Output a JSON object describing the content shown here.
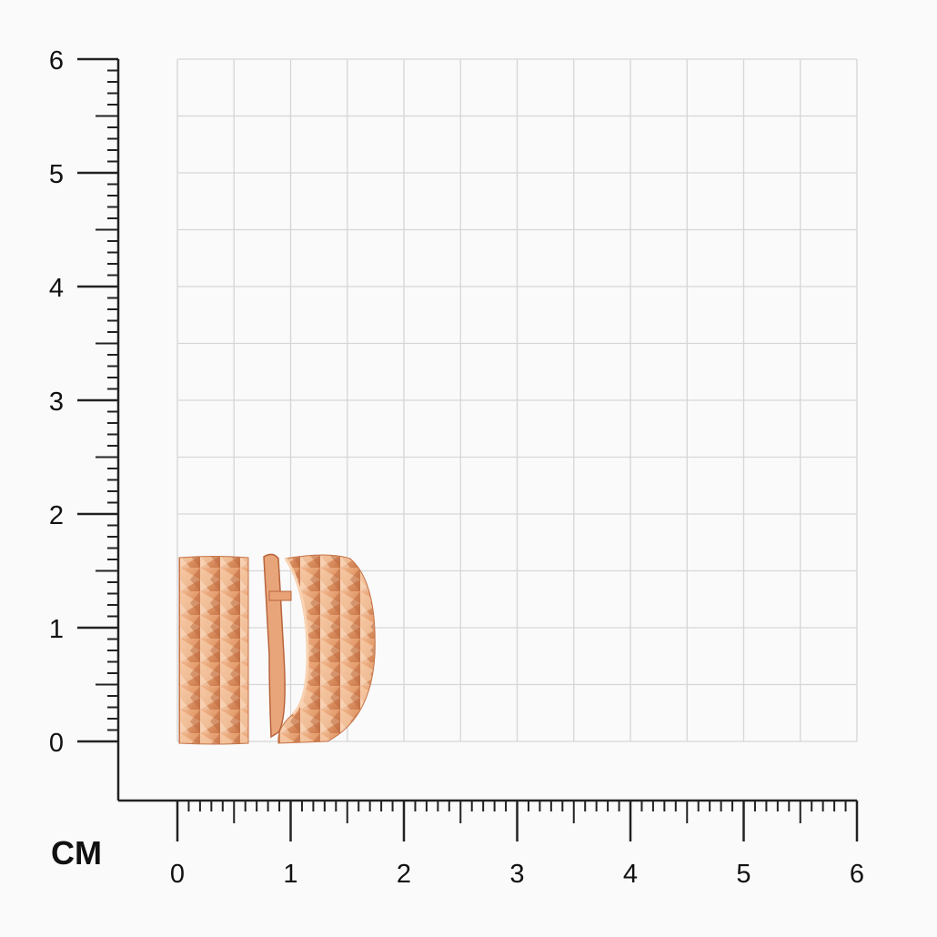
{
  "ruler": {
    "unit_label": "CM",
    "x_ticks": [
      "0",
      "1",
      "2",
      "3",
      "4",
      "5",
      "6"
    ],
    "y_ticks": [
      "0",
      "1",
      "2",
      "3",
      "4",
      "5",
      "6"
    ],
    "range_cm": [
      0,
      6
    ],
    "grid_step_cm": 0.5,
    "minor_tick_cm": 0.1
  },
  "product": {
    "description_icon": "earrings-photo",
    "colors": {
      "gold_light": "#f6c9a3",
      "gold_mid": "#e29a6a",
      "gold_dark": "#b8643b"
    }
  }
}
